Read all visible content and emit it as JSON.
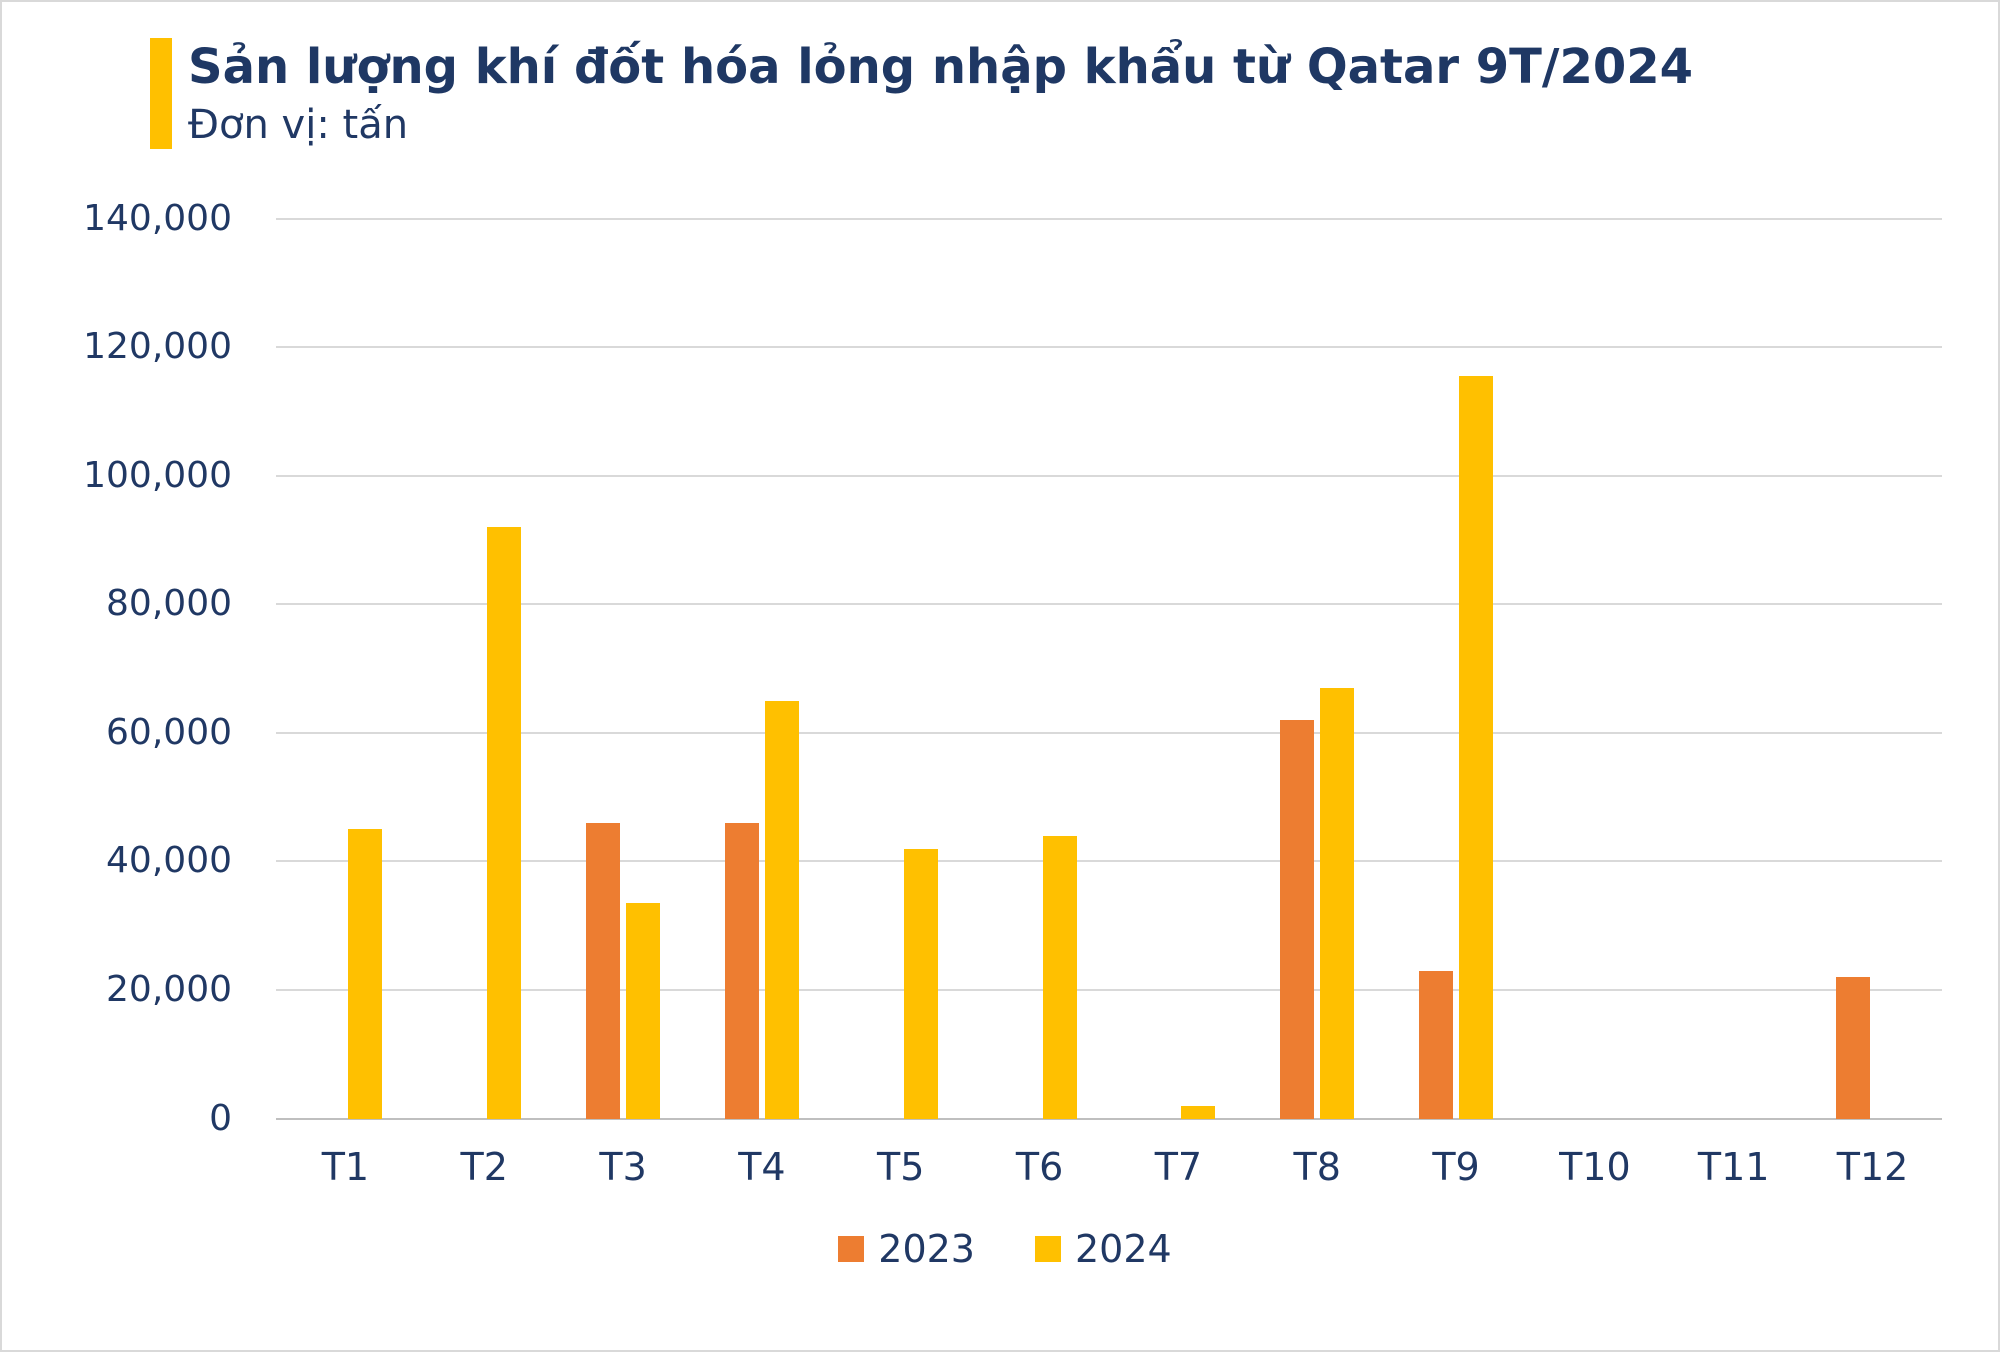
{
  "title": "Sản lượng khí đốt hóa lỏng nhập khẩu từ Qatar 9T/2024",
  "subtitle": "Đơn vị: tấn",
  "colors": {
    "title_text": "#1F3864",
    "subtitle_text": "#203864",
    "axis_text": "#203864",
    "accent": "#FFC000",
    "gridline": "#D9D9D9",
    "baseline": "#BFBFBF",
    "background": "#FFFFFF",
    "border": "#D9D9D9"
  },
  "chart_data": {
    "type": "bar",
    "title": "Sản lượng khí đốt hóa lỏng nhập khẩu từ Qatar 9T/2024",
    "subtitle": "Đơn vị: tấn",
    "categories": [
      "T1",
      "T2",
      "T3",
      "T4",
      "T5",
      "T6",
      "T7",
      "T8",
      "T9",
      "T10",
      "T11",
      "T12"
    ],
    "series": [
      {
        "name": "2023",
        "color": "#ED7D31",
        "values": [
          0,
          0,
          46000,
          46000,
          0,
          0,
          0,
          62000,
          23000,
          0,
          0,
          22000
        ]
      },
      {
        "name": "2024",
        "color": "#FFC000",
        "values": [
          45000,
          92000,
          33500,
          65000,
          42000,
          44000,
          2000,
          67000,
          115500,
          0,
          0,
          0
        ]
      }
    ],
    "ylim": [
      0,
      140000
    ],
    "ytick_step": 20000,
    "ytick_labels": [
      "0",
      "20,000",
      "40,000",
      "60,000",
      "80,000",
      "100,000",
      "120,000",
      "140,000"
    ],
    "grid": true,
    "legend_position": "bottom",
    "legend_entries": [
      "2023",
      "2024"
    ]
  }
}
